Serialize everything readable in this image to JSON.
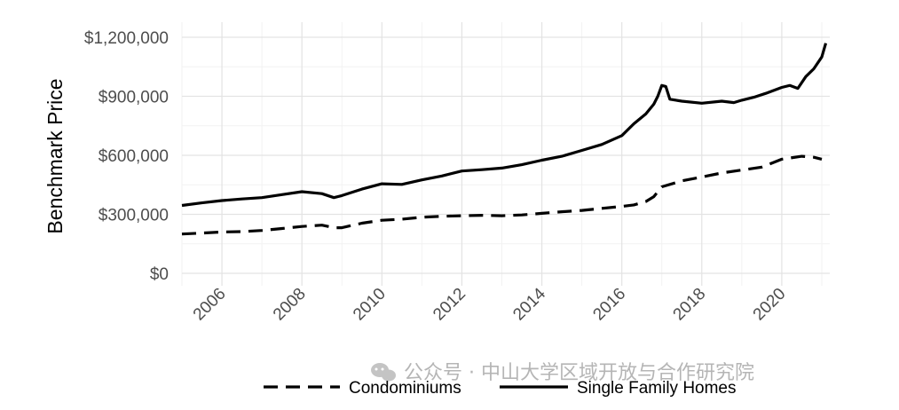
{
  "chart_data": {
    "type": "line",
    "title": "",
    "xlabel": "",
    "ylabel": "Benchmark Price",
    "xlim": [
      2005.0,
      2021.2
    ],
    "ylim": [
      0,
      1200000
    ],
    "x_ticks": [
      2006,
      2008,
      2010,
      2012,
      2014,
      2016,
      2018,
      2020
    ],
    "y_ticks": [
      0,
      300000,
      600000,
      900000,
      1200000
    ],
    "y_tick_labels": [
      "$0",
      "$300,000",
      "$600,000",
      "$900,000",
      "$1,200,000"
    ],
    "grid": true,
    "legend_position": "bottom",
    "series": [
      {
        "name": "Condominiums",
        "style": "dashed",
        "color": "#000000",
        "x": [
          2005.0,
          2005.5,
          2006.0,
          2006.5,
          2007.0,
          2007.5,
          2008.0,
          2008.5,
          2008.8,
          2009.0,
          2009.5,
          2010.0,
          2010.5,
          2011.0,
          2011.5,
          2012.0,
          2012.5,
          2013.0,
          2013.5,
          2014.0,
          2014.5,
          2015.0,
          2015.5,
          2016.0,
          2016.3,
          2016.6,
          2016.8,
          2017.0,
          2017.5,
          2018.0,
          2018.5,
          2019.0,
          2019.5,
          2020.0,
          2020.5,
          2020.8,
          2021.0
        ],
        "values": [
          200000,
          205000,
          210000,
          212000,
          218000,
          228000,
          238000,
          245000,
          232000,
          232000,
          255000,
          270000,
          275000,
          285000,
          290000,
          293000,
          295000,
          293000,
          297000,
          305000,
          313000,
          320000,
          330000,
          340000,
          348000,
          365000,
          390000,
          440000,
          470000,
          490000,
          510000,
          525000,
          540000,
          580000,
          595000,
          590000,
          580000
        ]
      },
      {
        "name": "Single Family Homes",
        "style": "solid",
        "color": "#000000",
        "x": [
          2005.0,
          2005.5,
          2006.0,
          2006.5,
          2007.0,
          2007.5,
          2008.0,
          2008.5,
          2008.8,
          2009.0,
          2009.5,
          2010.0,
          2010.5,
          2011.0,
          2011.5,
          2012.0,
          2012.5,
          2013.0,
          2013.5,
          2014.0,
          2014.5,
          2015.0,
          2015.5,
          2016.0,
          2016.3,
          2016.6,
          2016.8,
          2016.9,
          2017.0,
          2017.1,
          2017.2,
          2017.5,
          2018.0,
          2018.5,
          2018.8,
          2019.0,
          2019.3,
          2019.6,
          2020.0,
          2020.2,
          2020.4,
          2020.6,
          2020.8,
          2021.0,
          2021.1
        ],
        "values": [
          345000,
          358000,
          370000,
          378000,
          385000,
          400000,
          415000,
          405000,
          385000,
          395000,
          428000,
          455000,
          452000,
          475000,
          495000,
          520000,
          527000,
          535000,
          552000,
          575000,
          595000,
          625000,
          655000,
          700000,
          760000,
          810000,
          860000,
          900000,
          955000,
          950000,
          885000,
          875000,
          865000,
          875000,
          868000,
          880000,
          895000,
          915000,
          945000,
          955000,
          940000,
          1000000,
          1040000,
          1100000,
          1170000
        ]
      }
    ]
  },
  "watermark": {
    "text": "公众号 · 中山大学区域开放与合作研究院"
  }
}
